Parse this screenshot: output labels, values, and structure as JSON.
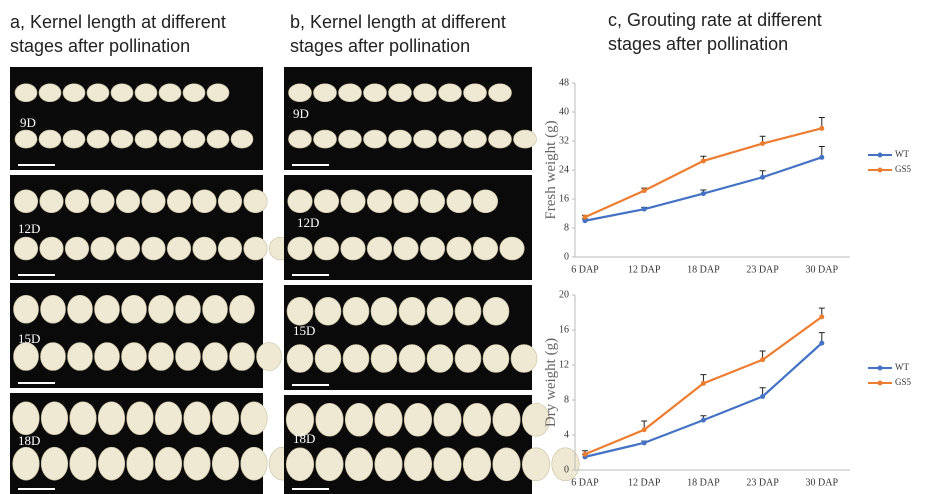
{
  "panels": [
    {
      "title_lines": [
        "a, Kernel length at different",
        "stages after pollination"
      ],
      "stages": [
        "9D",
        "12D",
        "15D",
        "18D"
      ]
    },
    {
      "title_lines": [
        "b, Kernel length at different",
        "stages after pollination"
      ],
      "stages": [
        "9D",
        "12D",
        "15D",
        "18D"
      ]
    },
    {
      "title_lines": [
        "c, Grouting rate at different",
        "stages after pollination"
      ]
    }
  ],
  "chart_data": [
    {
      "type": "line",
      "y_label": "Fresh weight (g)",
      "categories": [
        "6 DAP",
        "12 DAP",
        "18 DAP",
        "23 DAP",
        "30 DAP"
      ],
      "series": [
        {
          "name": "WT",
          "color": "#4472c4",
          "values": [
            10,
            13.2,
            17.5,
            22,
            27.5
          ],
          "errors": [
            0.5,
            0.5,
            1,
            1.8,
            3
          ]
        },
        {
          "name": "GS5",
          "color": "#ed7d31",
          "values": [
            11,
            18.3,
            26.5,
            31.3,
            35.5
          ],
          "errors": [
            0.5,
            0.7,
            1.3,
            2,
            3
          ]
        }
      ],
      "ylim": [
        0,
        48
      ],
      "yticks": [
        0,
        8,
        16,
        24,
        32,
        40,
        48
      ],
      "legend": "right"
    },
    {
      "type": "line",
      "y_label": "Dry weight (g)",
      "categories": [
        "6 DAP",
        "12 DAP",
        "18 DAP",
        "23 DAP",
        "30 DAP"
      ],
      "series": [
        {
          "name": "WT",
          "color": "#4472c4",
          "values": [
            1.5,
            3.1,
            5.7,
            8.4,
            14.5
          ],
          "errors": [
            0.3,
            0.2,
            0.5,
            1,
            1.2
          ]
        },
        {
          "name": "GS5",
          "color": "#ed7d31",
          "values": [
            1.8,
            4.6,
            9.9,
            12.6,
            17.5
          ],
          "errors": [
            0.4,
            1,
            1,
            1,
            1
          ]
        }
      ],
      "ylim": [
        0,
        20
      ],
      "yticks": [
        0,
        4,
        8,
        12,
        16,
        20
      ],
      "legend": "right"
    }
  ]
}
